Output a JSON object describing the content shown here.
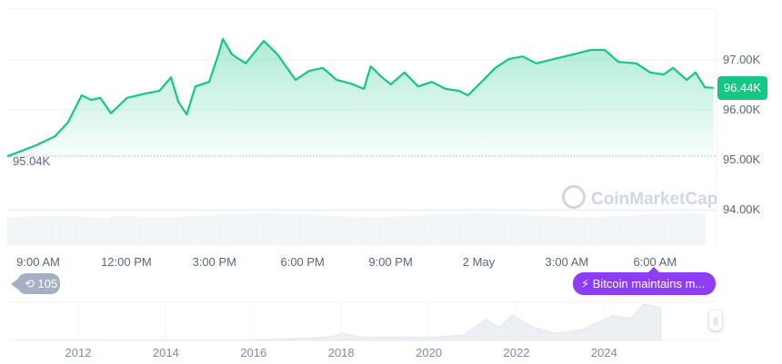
{
  "chart_data": {
    "type": "area",
    "currency_unit": "K",
    "ylim": [
      93.5,
      98.0
    ],
    "y_ticks": [
      "97.00K",
      "96.00K",
      "95.00K",
      "94.00K"
    ],
    "y_tick_values": [
      97,
      96,
      95,
      94
    ],
    "x_ticks": [
      "9:00 AM",
      "12:00 PM",
      "3:00 PM",
      "6:00 PM",
      "9:00 PM",
      "2 May",
      "3:00 AM",
      "6:00 AM"
    ],
    "grid": true,
    "line_color": "#16c784",
    "series": [
      {
        "points": [
          [
            "05-01 07:57",
            95.07
          ],
          [
            "05-01 08:56",
            95.29
          ],
          [
            "05-01 09:34",
            95.47
          ],
          [
            "05-01 10:01",
            95.75
          ],
          [
            "05-01 10:29",
            96.29
          ],
          [
            "05-01 10:48",
            96.2
          ],
          [
            "05-01 11:07",
            96.24
          ],
          [
            "05-01 11:29",
            95.93
          ],
          [
            "05-01 12:02",
            96.24
          ],
          [
            "05-01 12:40",
            96.33
          ],
          [
            "05-01 13:08",
            96.38
          ],
          [
            "05-01 13:32",
            96.65
          ],
          [
            "05-01 13:47",
            96.16
          ],
          [
            "05-01 14:04",
            95.91
          ],
          [
            "05-01 14:22",
            96.47
          ],
          [
            "05-01 14:50",
            96.56
          ],
          [
            "05-01 15:09",
            97.11
          ],
          [
            "05-01 15:18",
            97.42
          ],
          [
            "05-01 15:37",
            97.11
          ],
          [
            "05-01 16:05",
            96.93
          ],
          [
            "05-01 16:42",
            97.38
          ],
          [
            "05-01 17:10",
            97.11
          ],
          [
            "05-01 17:47",
            96.6
          ],
          [
            "05-01 18:15",
            96.78
          ],
          [
            "05-01 18:43",
            96.84
          ],
          [
            "05-01 19:11",
            96.6
          ],
          [
            "05-01 19:39",
            96.53
          ],
          [
            "05-01 20:07",
            96.42
          ],
          [
            "05-01 20:21",
            96.87
          ],
          [
            "05-01 20:44",
            96.65
          ],
          [
            "05-01 21:02",
            96.51
          ],
          [
            "05-01 21:30",
            96.75
          ],
          [
            "05-01 21:58",
            96.47
          ],
          [
            "05-01 22:26",
            96.56
          ],
          [
            "05-01 22:54",
            96.42
          ],
          [
            "05-01 23:22",
            96.38
          ],
          [
            "05-01 23:40",
            96.29
          ],
          [
            "05-02 00:08",
            96.56
          ],
          [
            "05-02 00:36",
            96.84
          ],
          [
            "05-02 01:04",
            97.02
          ],
          [
            "05-02 01:32",
            97.07
          ],
          [
            "05-02 02:00",
            96.93
          ],
          [
            "05-02 02:37",
            97.02
          ],
          [
            "05-02 03:15",
            97.11
          ],
          [
            "05-02 03:52",
            97.2
          ],
          [
            "05-02 04:20",
            97.2
          ],
          [
            "05-02 04:48",
            96.96
          ],
          [
            "05-02 05:25",
            96.93
          ],
          [
            "05-02 05:53",
            96.75
          ],
          [
            "05-02 06:21",
            96.71
          ],
          [
            "05-02 06:40",
            96.84
          ],
          [
            "05-02 07:08",
            96.6
          ],
          [
            "05-02 07:26",
            96.75
          ],
          [
            "05-02 07:45",
            96.45
          ],
          [
            "05-02 08:03",
            96.44
          ]
        ]
      }
    ],
    "start_price_label": "95.04K",
    "current_price_label": "96.44K",
    "navigator": {
      "x_ticks": [
        "2012",
        "2014",
        "2016",
        "2018",
        "2020",
        "2022",
        "2024"
      ],
      "points": [
        [
          2010.6,
          0
        ],
        [
          2013,
          0.01
        ],
        [
          2016,
          0.01
        ],
        [
          2017.8,
          0.1
        ],
        [
          2018,
          0.2
        ],
        [
          2018.5,
          0.08
        ],
        [
          2019.5,
          0.1
        ],
        [
          2020,
          0.08
        ],
        [
          2020.8,
          0.15
        ],
        [
          2021.3,
          0.6
        ],
        [
          2021.6,
          0.35
        ],
        [
          2021.9,
          0.7
        ],
        [
          2022.4,
          0.35
        ],
        [
          2022.9,
          0.2
        ],
        [
          2023.5,
          0.3
        ],
        [
          2024.2,
          0.7
        ],
        [
          2024.6,
          0.6
        ],
        [
          2024.9,
          1.0
        ],
        [
          2025.3,
          0.9
        ]
      ]
    }
  },
  "watermark": "CoinMarketCap",
  "events_count": "105",
  "news_pill": "Bitcoin maintains m...",
  "colors": {
    "up": "#16c784",
    "news": "#8d3ef5",
    "badge_gray": "#a6b0c3"
  }
}
